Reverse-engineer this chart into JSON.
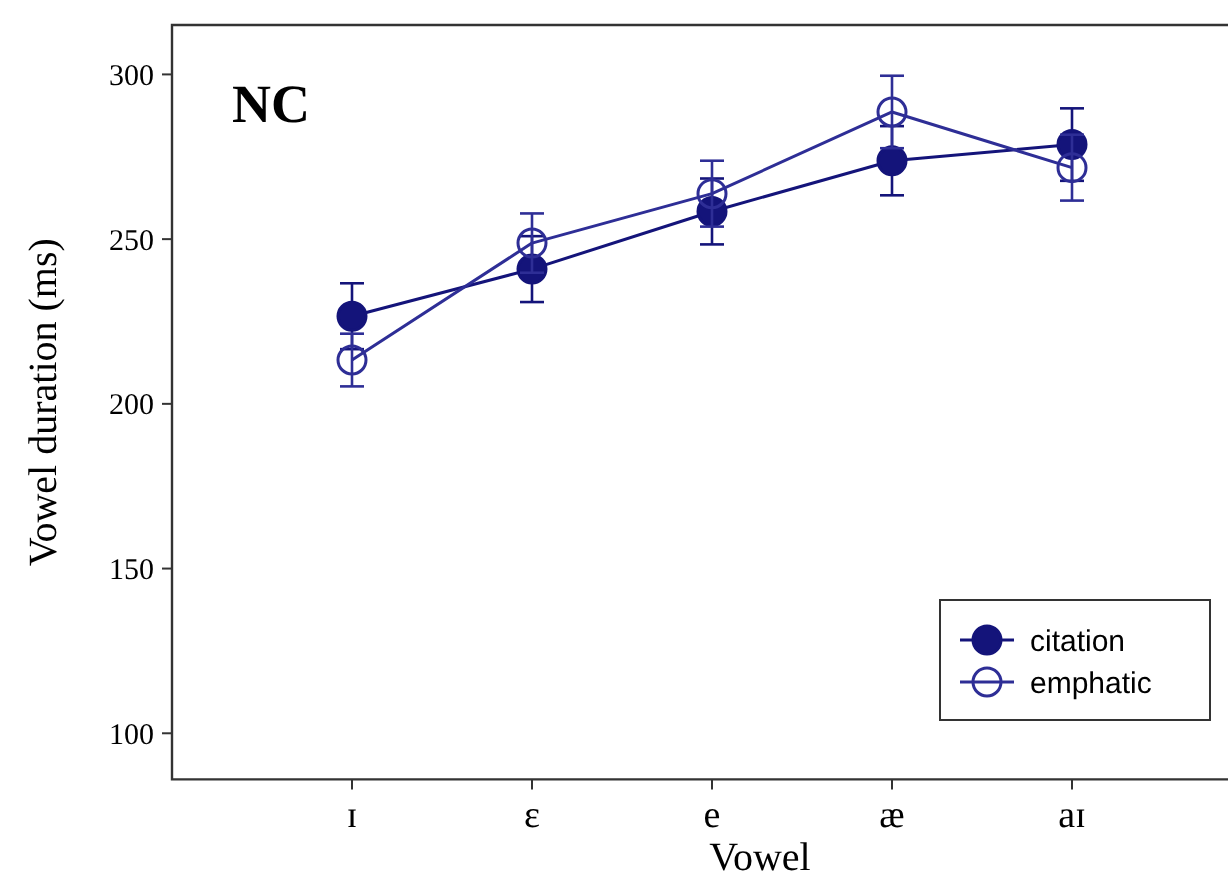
{
  "chart_data": {
    "type": "line",
    "xlabel": "Vowel",
    "ylabel": "Vowel duration (ms)",
    "annotations": [
      "NC"
    ],
    "categories": [
      "ɪ",
      "ɛ",
      "e",
      "æ",
      "aɪ"
    ],
    "series": [
      {
        "name": "citation",
        "color": "#14147a",
        "values": [
          226.6,
          240.9,
          258.4,
          273.8,
          278.7
        ],
        "errors": [
          10,
          10,
          10,
          10.5,
          11
        ]
      },
      {
        "name": "emphatic",
        "color": "#2e2e96",
        "values": [
          213.3,
          248.8,
          263.8,
          288.6,
          271.7
        ],
        "errors": [
          8,
          9,
          10,
          11,
          10
        ]
      }
    ],
    "ylim": [
      86,
      315
    ],
    "yticks": [
      100,
      150,
      200,
      250,
      300
    ],
    "marker": "circle",
    "line_style": "solid",
    "legend": "bottom right",
    "grid": false
  }
}
